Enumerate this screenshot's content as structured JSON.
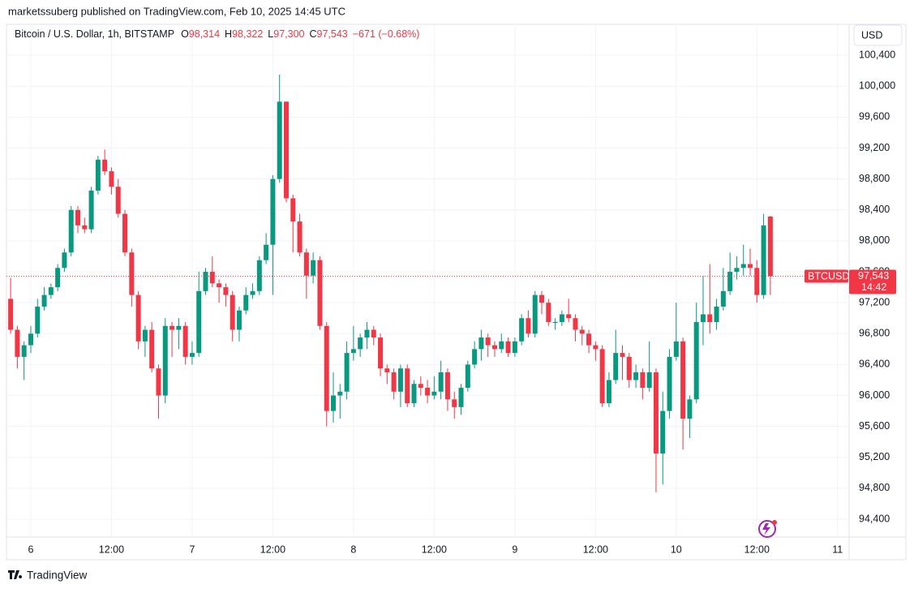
{
  "header": {
    "published": "marketssuberg published on TradingView.com, Feb 10, 2025 14:45 UTC",
    "currency": "USD",
    "brand": "TradingView"
  },
  "legend": {
    "symbol": "Bitcoin / U.S. Dollar, 1h, BITSTAMP",
    "items": [
      {
        "key": "O",
        "text": "98,314"
      },
      {
        "key": "H",
        "text": "98,322"
      },
      {
        "key": "L",
        "text": "97,300"
      },
      {
        "key": "C",
        "text": "97,543"
      }
    ],
    "change": "−671 (−0.68%)"
  },
  "chart_data": {
    "type": "candlestick",
    "up_color": "#089981",
    "down_color": "#f23645",
    "grid": true,
    "categories": [
      null,
      null,
      null,
      "6",
      null,
      null,
      null,
      null,
      null,
      null,
      null,
      null,
      null,
      null,
      null,
      "12:00",
      null,
      null,
      null,
      null,
      null,
      null,
      null,
      null,
      null,
      null,
      null,
      "7",
      null,
      null,
      null,
      null,
      null,
      null,
      null,
      null,
      null,
      null,
      null,
      "12:00",
      null,
      null,
      null,
      null,
      null,
      null,
      null,
      null,
      null,
      null,
      null,
      "8",
      null,
      null,
      null,
      null,
      null,
      null,
      null,
      null,
      null,
      null,
      null,
      "12:00",
      null,
      null,
      null,
      null,
      null,
      null,
      null,
      null,
      null,
      null,
      null,
      "9",
      null,
      null,
      null,
      null,
      null,
      null,
      null,
      null,
      null,
      null,
      null,
      "12:00",
      null,
      null,
      null,
      null,
      null,
      null,
      null,
      null,
      null,
      null,
      null,
      "10",
      null,
      null,
      null,
      null,
      null,
      null,
      null,
      null,
      null,
      null,
      null,
      "12:00",
      null,
      null,
      null,
      null,
      null,
      null,
      null,
      null,
      null,
      null,
      null,
      "11",
      null
    ],
    "open": [
      97250,
      96850,
      96500,
      96650,
      96800,
      97150,
      97300,
      97400,
      97650,
      97850,
      98400,
      98200,
      98150,
      98650,
      99050,
      98900,
      98700,
      98350,
      97850,
      97300,
      96700,
      96850,
      96350,
      96000,
      96900,
      96850,
      96900,
      96500,
      96550,
      97350,
      97600,
      97450,
      97400,
      97300,
      96850,
      97100,
      97300,
      97350,
      97750,
      97950,
      98800,
      99800,
      98550,
      98250,
      97850,
      97550,
      97750,
      96900,
      95800,
      96000,
      96050,
      96550,
      96600,
      96750,
      96850,
      96750,
      96350,
      96300,
      96050,
      96350,
      95900,
      96150,
      96100,
      96000,
      96050,
      96300,
      95950,
      95850,
      96100,
      96400,
      96600,
      96750,
      96650,
      96600,
      96700,
      96550,
      96700,
      97000,
      96800,
      97300,
      97200,
      96950,
      96950,
      97050,
      97000,
      96850,
      96800,
      96650,
      96600,
      95900,
      96200,
      96550,
      96500,
      96200,
      96300,
      96100,
      96300,
      95250,
      95800,
      96500,
      96700,
      95700,
      95950,
      96950,
      97050,
      96950,
      97150,
      97350,
      97600,
      97650,
      97700,
      97650,
      97300,
      98314,
      null,
      null,
      null,
      null,
      null,
      null,
      null,
      null,
      null,
      null,
      null
    ],
    "high": [
      97520,
      96900,
      96700,
      96900,
      97250,
      97400,
      97450,
      97700,
      97900,
      98450,
      98450,
      98300,
      98700,
      99100,
      99180,
      98950,
      98800,
      98400,
      97900,
      97350,
      96900,
      96950,
      96400,
      97000,
      96950,
      97000,
      96950,
      96700,
      97600,
      97650,
      97800,
      97500,
      97450,
      97350,
      97150,
      97400,
      97450,
      97800,
      98100,
      98850,
      100150,
      99800,
      98600,
      98350,
      97900,
      97850,
      97800,
      96950,
      96300,
      96150,
      96700,
      96900,
      96800,
      96950,
      96900,
      96800,
      96400,
      96350,
      96400,
      96400,
      96200,
      96250,
      96200,
      96250,
      96450,
      96350,
      96050,
      96150,
      96450,
      96700,
      96850,
      96800,
      96700,
      96800,
      96750,
      96750,
      97050,
      97100,
      97350,
      97350,
      97250,
      97000,
      97100,
      97250,
      97050,
      96900,
      96850,
      96700,
      96650,
      96300,
      96850,
      96650,
      96550,
      96400,
      96350,
      96700,
      96350,
      96050,
      96600,
      97200,
      96750,
      96000,
      97200,
      97550,
      97700,
      97250,
      97650,
      97850,
      97800,
      97950,
      97900,
      97750,
      98350,
      98322,
      null,
      null,
      null,
      null,
      null,
      null,
      null,
      null,
      null,
      null,
      null
    ],
    "low": [
      96800,
      96350,
      96200,
      96550,
      96750,
      97100,
      97250,
      97350,
      97600,
      97800,
      98100,
      98100,
      98100,
      98600,
      98850,
      98600,
      98300,
      97800,
      97150,
      96600,
      96500,
      96300,
      95700,
      95900,
      96500,
      96600,
      96400,
      96400,
      96500,
      97300,
      97400,
      97200,
      97150,
      96700,
      96700,
      97050,
      97250,
      97300,
      97700,
      97300,
      98750,
      98500,
      97850,
      97800,
      97250,
      97450,
      96850,
      95600,
      95650,
      95700,
      95950,
      96450,
      96500,
      96600,
      96650,
      96250,
      96150,
      95950,
      95850,
      95850,
      95850,
      96000,
      95900,
      95950,
      95950,
      95800,
      95700,
      95750,
      96050,
      96350,
      96450,
      96500,
      96500,
      96550,
      96500,
      96500,
      96650,
      96750,
      96750,
      97050,
      96900,
      96850,
      96900,
      96950,
      96700,
      96650,
      96550,
      96450,
      95850,
      95850,
      96150,
      96200,
      96100,
      96100,
      95950,
      96050,
      94750,
      94850,
      95700,
      96450,
      95300,
      95450,
      95900,
      96650,
      96800,
      96850,
      97100,
      97300,
      97500,
      97550,
      97550,
      97200,
      97250,
      97300,
      null,
      null,
      null,
      null,
      null,
      null,
      null,
      null,
      null,
      null,
      null
    ],
    "close": [
      96850,
      96500,
      96650,
      96800,
      97150,
      97300,
      97400,
      97650,
      97850,
      98400,
      98200,
      98150,
      98650,
      99050,
      98900,
      98700,
      98350,
      97850,
      97300,
      96700,
      96850,
      96350,
      96000,
      96900,
      96850,
      96900,
      96500,
      96550,
      97350,
      97600,
      97450,
      97400,
      97300,
      96850,
      97100,
      97300,
      97350,
      97750,
      97950,
      98800,
      99800,
      98550,
      98250,
      97850,
      97550,
      97750,
      96900,
      95800,
      96000,
      96050,
      96550,
      96600,
      96750,
      96850,
      96750,
      96350,
      96300,
      96050,
      96350,
      95900,
      96150,
      96100,
      96000,
      96050,
      96300,
      95950,
      95850,
      96100,
      96400,
      96600,
      96750,
      96650,
      96600,
      96700,
      96550,
      96700,
      97000,
      96800,
      97300,
      97200,
      96950,
      96950,
      97050,
      97000,
      96850,
      96800,
      96650,
      96600,
      95900,
      96200,
      96550,
      96500,
      96200,
      96300,
      96100,
      96300,
      95250,
      95800,
      96500,
      96700,
      95700,
      95950,
      96950,
      97050,
      96950,
      97150,
      97350,
      97600,
      97650,
      97700,
      97650,
      97300,
      98200,
      97543,
      null,
      null,
      null,
      null,
      null,
      null,
      null,
      null,
      null,
      null,
      null
    ],
    "ylim": [
      94170,
      100800
    ],
    "yticks": [
      {
        "value": 94400,
        "label": "94,400"
      },
      {
        "value": 94800,
        "label": "94,800"
      },
      {
        "value": 95200,
        "label": "95,200"
      },
      {
        "value": 95600,
        "label": "95,600"
      },
      {
        "value": 96000,
        "label": "96,000"
      },
      {
        "value": 96400,
        "label": "96,400"
      },
      {
        "value": 96800,
        "label": "96,800"
      },
      {
        "value": 97200,
        "label": "97,200"
      },
      {
        "value": 97600,
        "label": "97,600"
      },
      {
        "value": 98000,
        "label": "98,000"
      },
      {
        "value": 98400,
        "label": "98,400"
      },
      {
        "value": 98800,
        "label": "98,800"
      },
      {
        "value": 99200,
        "label": "99,200"
      },
      {
        "value": 99600,
        "label": "99,600"
      },
      {
        "value": 100000,
        "label": "100,000"
      },
      {
        "value": 100400,
        "label": "100,400"
      }
    ],
    "price_tag": {
      "symbol": "BTCUSD",
      "price": {
        "value": 97543,
        "label": "97,543"
      },
      "countdown": "14:42"
    }
  }
}
